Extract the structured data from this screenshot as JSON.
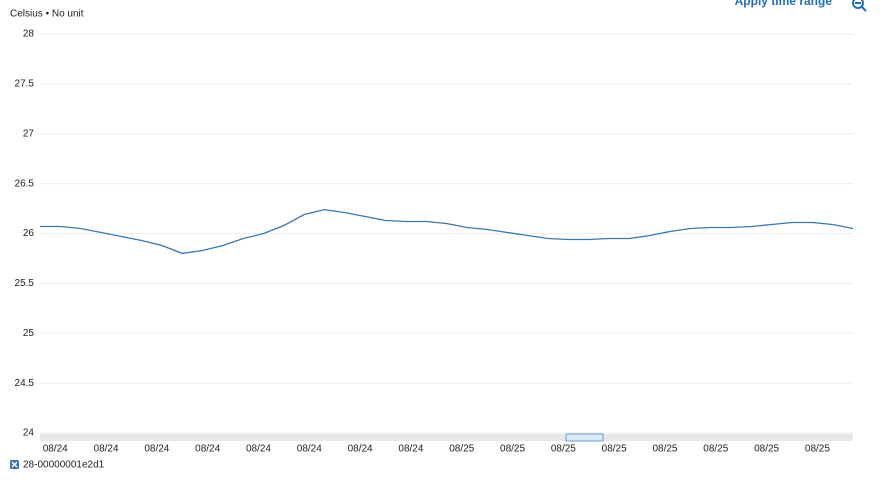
{
  "chart_data": {
    "type": "line",
    "button": "Apply time range",
    "y_label": "Celsius • No unit",
    "ylim": [
      24,
      28
    ],
    "yticks": [
      24,
      24.5,
      25,
      25.5,
      26,
      26.5,
      27,
      27.5,
      28
    ],
    "grid": true,
    "xtick_labels": [
      "08/24",
      "08/24",
      "08/24",
      "08/24",
      "08/24",
      "08/24",
      "08/24",
      "08/24",
      "08/25",
      "08/25",
      "08/25",
      "08/25",
      "08/25",
      "08/25",
      "08/25",
      "08/25"
    ],
    "series": [
      {
        "name": "28-00000001e2d1",
        "color": "#3a78b5",
        "values": [
          26.07,
          26.07,
          26.05,
          26.01,
          25.97,
          25.93,
          25.88,
          25.8,
          25.83,
          25.88,
          25.95,
          26.0,
          26.08,
          26.19,
          26.24,
          26.21,
          26.17,
          26.13,
          26.12,
          26.12,
          26.1,
          26.06,
          26.04,
          26.01,
          25.98,
          25.95,
          25.94,
          25.94,
          25.95,
          25.95,
          25.98,
          26.02,
          26.05,
          26.06,
          26.06,
          26.07,
          26.09,
          26.11,
          26.11,
          26.09,
          26.05
        ]
      }
    ]
  }
}
